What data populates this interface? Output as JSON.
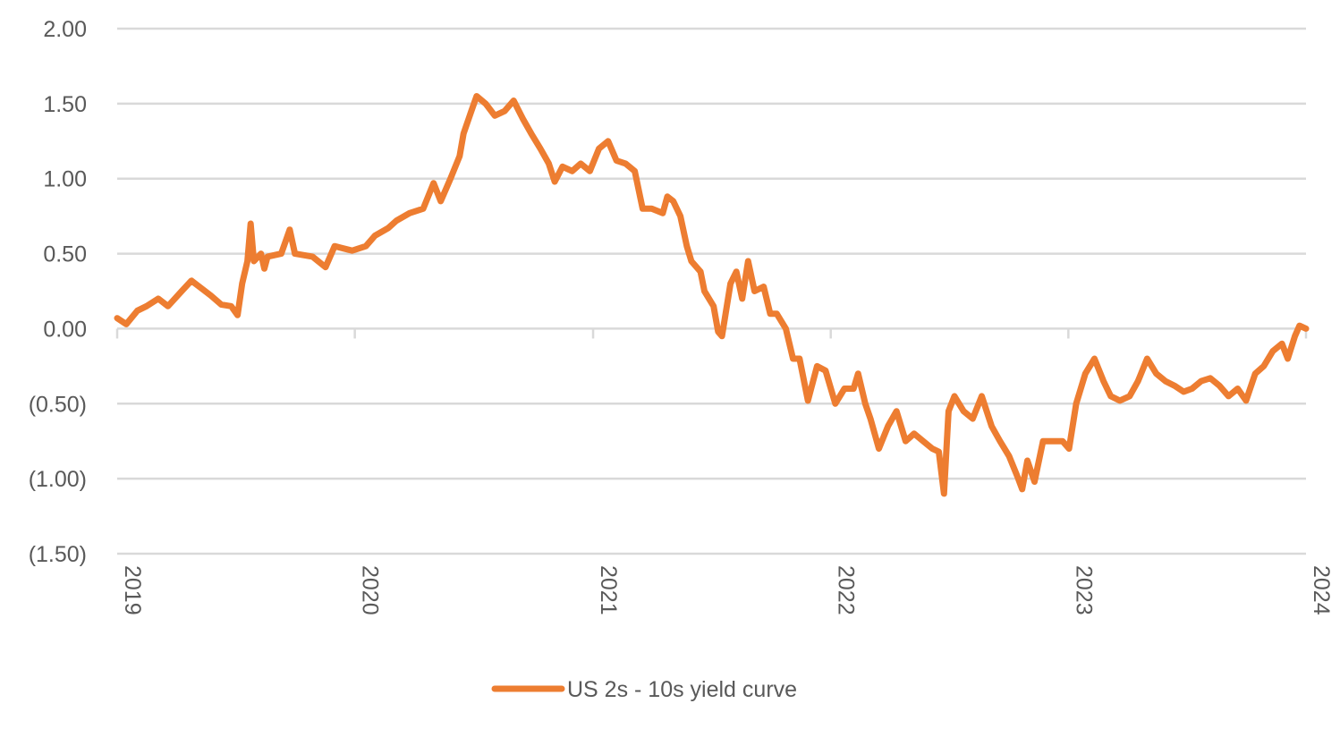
{
  "chart_data": {
    "type": "line",
    "title": "",
    "xlabel": "",
    "ylabel": "",
    "ylim": [
      -1.5,
      2.0
    ],
    "xlim": [
      "2019-01-01",
      "2024-01-01"
    ],
    "grid": "horizontal",
    "legend_placement": "bottom",
    "y_ticks": [
      {
        "value": 2.0,
        "label": "2.00"
      },
      {
        "value": 1.5,
        "label": "1.50"
      },
      {
        "value": 1.0,
        "label": "1.00"
      },
      {
        "value": 0.5,
        "label": "0.50"
      },
      {
        "value": 0.0,
        "label": "0.00"
      },
      {
        "value": -0.5,
        "label": "(0.50)"
      },
      {
        "value": -1.0,
        "label": "(1.00)"
      },
      {
        "value": -1.5,
        "label": "(1.50)"
      }
    ],
    "x_ticks": [
      {
        "value": "2019-01-01",
        "label": "2019"
      },
      {
        "value": "2020-01-01",
        "label": "2020"
      },
      {
        "value": "2021-01-01",
        "label": "2021"
      },
      {
        "value": "2022-01-01",
        "label": "2022"
      },
      {
        "value": "2023-01-01",
        "label": "2023"
      },
      {
        "value": "2024-01-01",
        "label": "2024"
      }
    ],
    "series": [
      {
        "name": "US 2s - 10s yield curve",
        "color": "#ED7D31",
        "points": [
          [
            "2019-01-01",
            0.07
          ],
          [
            "2019-01-15",
            0.03
          ],
          [
            "2019-02-01",
            0.12
          ],
          [
            "2019-02-15",
            0.15
          ],
          [
            "2019-03-05",
            0.2
          ],
          [
            "2019-03-20",
            0.15
          ],
          [
            "2019-04-10",
            0.25
          ],
          [
            "2019-04-25",
            0.32
          ],
          [
            "2019-05-10",
            0.27
          ],
          [
            "2019-05-25",
            0.22
          ],
          [
            "2019-06-10",
            0.16
          ],
          [
            "2019-06-25",
            0.15
          ],
          [
            "2019-07-05",
            0.09
          ],
          [
            "2019-07-12",
            0.3
          ],
          [
            "2019-07-20",
            0.45
          ],
          [
            "2019-07-25",
            0.7
          ],
          [
            "2019-07-30",
            0.45
          ],
          [
            "2019-08-10",
            0.5
          ],
          [
            "2019-08-15",
            0.4
          ],
          [
            "2019-08-20",
            0.48
          ],
          [
            "2019-09-10",
            0.5
          ],
          [
            "2019-09-23",
            0.66
          ],
          [
            "2019-10-01",
            0.5
          ],
          [
            "2019-10-28",
            0.48
          ],
          [
            "2019-11-17",
            0.41
          ],
          [
            "2019-12-01",
            0.55
          ],
          [
            "2019-12-28",
            0.52
          ],
          [
            "2020-01-18",
            0.55
          ],
          [
            "2020-02-01",
            0.62
          ],
          [
            "2020-02-21",
            0.67
          ],
          [
            "2020-03-05",
            0.72
          ],
          [
            "2020-03-25",
            0.77
          ],
          [
            "2020-04-15",
            0.8
          ],
          [
            "2020-05-01",
            0.97
          ],
          [
            "2020-05-12",
            0.85
          ],
          [
            "2020-05-27",
            1.0
          ],
          [
            "2020-06-10",
            1.15
          ],
          [
            "2020-06-16",
            1.3
          ],
          [
            "2020-06-28",
            1.45
          ],
          [
            "2020-07-06",
            1.55
          ],
          [
            "2020-07-20",
            1.5
          ],
          [
            "2020-08-03",
            1.42
          ],
          [
            "2020-08-18",
            1.45
          ],
          [
            "2020-09-01",
            1.52
          ],
          [
            "2020-09-15",
            1.4
          ],
          [
            "2020-09-28",
            1.3
          ],
          [
            "2020-10-12",
            1.2
          ],
          [
            "2020-10-25",
            1.1
          ],
          [
            "2020-11-03",
            0.98
          ],
          [
            "2020-11-15",
            1.08
          ],
          [
            "2020-11-30",
            1.05
          ],
          [
            "2020-12-13",
            1.1
          ],
          [
            "2020-12-27",
            1.05
          ],
          [
            "2021-01-10",
            1.2
          ],
          [
            "2021-01-24",
            1.25
          ],
          [
            "2021-02-06",
            1.12
          ],
          [
            "2021-02-20",
            1.1
          ],
          [
            "2021-03-06",
            1.05
          ],
          [
            "2021-03-18",
            0.8
          ],
          [
            "2021-04-01",
            0.8
          ],
          [
            "2021-04-18",
            0.77
          ],
          [
            "2021-04-25",
            0.88
          ],
          [
            "2021-05-04",
            0.85
          ],
          [
            "2021-05-15",
            0.75
          ],
          [
            "2021-05-25",
            0.55
          ],
          [
            "2021-06-01",
            0.45
          ],
          [
            "2021-06-15",
            0.38
          ],
          [
            "2021-06-21",
            0.25
          ],
          [
            "2021-07-05",
            0.15
          ],
          [
            "2021-07-12",
            -0.02
          ],
          [
            "2021-07-18",
            -0.05
          ],
          [
            "2021-07-31",
            0.3
          ],
          [
            "2021-08-09",
            0.38
          ],
          [
            "2021-08-18",
            0.2
          ],
          [
            "2021-08-27",
            0.45
          ],
          [
            "2021-09-06",
            0.25
          ],
          [
            "2021-09-20",
            0.28
          ],
          [
            "2021-09-30",
            0.1
          ],
          [
            "2021-10-10",
            0.1
          ],
          [
            "2021-10-24",
            0.0
          ],
          [
            "2021-11-04",
            -0.2
          ],
          [
            "2021-11-14",
            -0.2
          ],
          [
            "2021-11-27",
            -0.48
          ],
          [
            "2021-12-11",
            -0.25
          ],
          [
            "2021-12-24",
            -0.28
          ],
          [
            "2022-01-08",
            -0.5
          ],
          [
            "2022-01-22",
            -0.4
          ],
          [
            "2022-02-05",
            -0.4
          ],
          [
            "2022-02-12",
            -0.3
          ],
          [
            "2022-02-23",
            -0.5
          ],
          [
            "2022-03-03",
            -0.6
          ],
          [
            "2022-03-16",
            -0.8
          ],
          [
            "2022-03-30",
            -0.65
          ],
          [
            "2022-04-12",
            -0.55
          ],
          [
            "2022-04-26",
            -0.75
          ],
          [
            "2022-05-09",
            -0.7
          ],
          [
            "2022-05-23",
            -0.75
          ],
          [
            "2022-06-06",
            -0.8
          ],
          [
            "2022-06-16",
            -0.82
          ],
          [
            "2022-06-24",
            -1.1
          ],
          [
            "2022-07-01",
            -0.55
          ],
          [
            "2022-07-10",
            -0.45
          ],
          [
            "2022-07-24",
            -0.55
          ],
          [
            "2022-08-07",
            -0.6
          ],
          [
            "2022-08-21",
            -0.45
          ],
          [
            "2022-09-05",
            -0.65
          ],
          [
            "2022-09-18",
            -0.75
          ],
          [
            "2022-10-02",
            -0.85
          ],
          [
            "2022-10-16",
            -1.0
          ],
          [
            "2022-10-22",
            -1.07
          ],
          [
            "2022-10-30",
            -0.88
          ],
          [
            "2022-11-10",
            -1.02
          ],
          [
            "2022-11-23",
            -0.75
          ],
          [
            "2022-12-09",
            -0.75
          ],
          [
            "2022-12-23",
            -0.75
          ],
          [
            "2023-01-02",
            -0.8
          ],
          [
            "2023-01-13",
            -0.5
          ],
          [
            "2023-01-27",
            -0.3
          ],
          [
            "2023-02-10",
            -0.2
          ],
          [
            "2023-02-24",
            -0.35
          ],
          [
            "2023-03-07",
            -0.45
          ],
          [
            "2023-03-21",
            -0.48
          ],
          [
            "2023-04-05",
            -0.45
          ],
          [
            "2023-04-18",
            -0.35
          ],
          [
            "2023-05-02",
            -0.2
          ],
          [
            "2023-05-16",
            -0.3
          ],
          [
            "2023-05-30",
            -0.35
          ],
          [
            "2023-06-13",
            -0.38
          ],
          [
            "2023-06-27",
            -0.42
          ],
          [
            "2023-07-10",
            -0.4
          ],
          [
            "2023-07-24",
            -0.35
          ],
          [
            "2023-08-07",
            -0.33
          ],
          [
            "2023-08-21",
            -0.38
          ],
          [
            "2023-09-04",
            -0.45
          ],
          [
            "2023-09-18",
            -0.4
          ],
          [
            "2023-10-01",
            -0.48
          ],
          [
            "2023-10-15",
            -0.3
          ],
          [
            "2023-10-28",
            -0.25
          ],
          [
            "2023-11-11",
            -0.15
          ],
          [
            "2023-11-25",
            -0.1
          ],
          [
            "2023-12-04",
            -0.2
          ],
          [
            "2023-12-15",
            -0.05
          ],
          [
            "2023-12-22",
            0.02
          ],
          [
            "2024-01-01",
            0.0
          ]
        ]
      }
    ]
  }
}
